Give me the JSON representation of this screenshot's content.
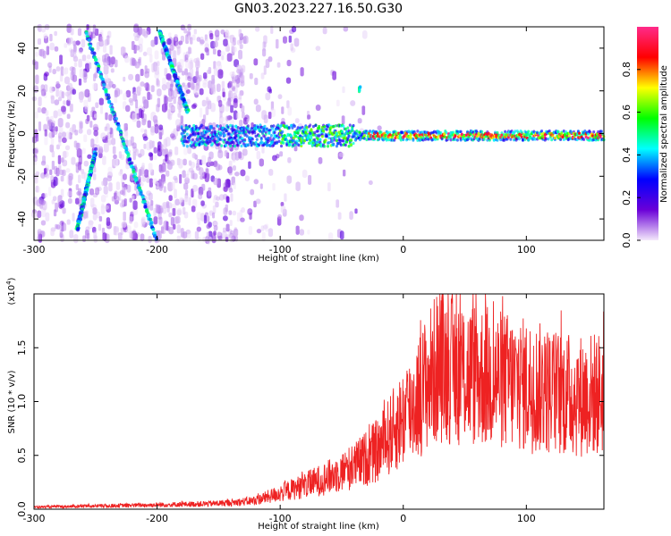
{
  "title": "GN03.2023.227.16.50.G30",
  "chart_data": [
    {
      "type": "heatmap",
      "xlabel": "Height of straight line (km)",
      "ylabel": "Frequency (Hz)",
      "xlim": [
        -300,
        163
      ],
      "ylim": [
        -50,
        50
      ],
      "x_ticks": [
        "-300",
        "-200",
        "-100",
        "0",
        "100"
      ],
      "y_ticks": [
        "-40",
        "-20",
        "0",
        "20",
        "40"
      ],
      "colorbar": {
        "label": "Normalized spectral amplitude",
        "ticks": [
          "0.0",
          "0.2",
          "0.4",
          "0.6",
          "0.8"
        ],
        "range": [
          0,
          1
        ],
        "colors": [
          "#f4e9fb",
          "#6a00d8",
          "#0000ff",
          "#00ffff",
          "#00ff00",
          "#ffff00",
          "#ff0000",
          "#ff2a8a"
        ]
      },
      "features": [
        {
          "name": "diagonal streak 1",
          "x_start": -258,
          "freq_start": 48,
          "x_end": -200,
          "freq_end": -50
        },
        {
          "name": "diagonal streak 2",
          "x_start": -198,
          "freq_start": 48,
          "x_end": -175,
          "freq_end": 10
        },
        {
          "name": "diagonal streak 3",
          "x_start": -250,
          "freq_start": -8,
          "x_end": -265,
          "freq_end": -45
        },
        {
          "name": "constant-frequency band",
          "x_start": -180,
          "x_end": 163,
          "freq": -1
        },
        {
          "name": "isolated blob",
          "x": -35,
          "freq": 22
        }
      ]
    },
    {
      "type": "line",
      "xlabel": "Height of straight line (km)",
      "ylabel": "SNR (10 * v/v)",
      "y_scale_label": "(x10",
      "y_scale_exponent": "4",
      "xlim": [
        -300,
        163
      ],
      "ylim": [
        0,
        2.0
      ],
      "x_ticks": [
        "-300",
        "-200",
        "-100",
        "0",
        "100"
      ],
      "y_ticks": [
        "0.0",
        "0.5",
        "1.0",
        "1.5"
      ],
      "series": [
        {
          "color": "#ee2222",
          "envelope": {
            "x": [
              -300,
              -250,
              -200,
              -160,
              -140,
              -120,
              -100,
              -80,
              -60,
              -40,
              -20,
              -10,
              0,
              10,
              20,
              30,
              40,
              60,
              80,
              100,
              120,
              140,
              163
            ],
            "y": [
              0.02,
              0.03,
              0.04,
              0.05,
              0.06,
              0.08,
              0.15,
              0.22,
              0.3,
              0.4,
              0.55,
              0.7,
              0.85,
              1.0,
              1.2,
              1.35,
              1.3,
              1.25,
              1.2,
              1.15,
              1.1,
              1.05,
              1.08
            ]
          }
        }
      ]
    }
  ]
}
